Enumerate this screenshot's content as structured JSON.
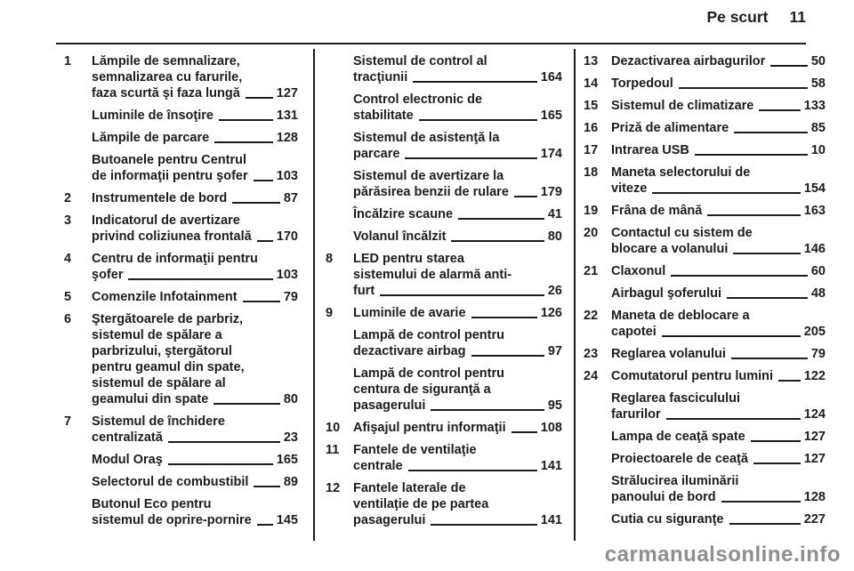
{
  "header": {
    "title": "Pe scurt",
    "page": "11"
  },
  "watermark": "carmanualsonline.info",
  "colors": {
    "text": "#1d1d1b",
    "rule": "#1d1d1b",
    "watermark": "#8e8e8e"
  },
  "columns": [
    {
      "entries": [
        {
          "ref": "1",
          "lines": [
            "Lămpile de semnalizare,",
            "semnalizarea cu farurile,",
            "faza scurtă şi faza lungă"
          ],
          "page": "127"
        },
        {
          "ref": "",
          "lines": [
            "Luminile de însoţire"
          ],
          "page": "131"
        },
        {
          "ref": "",
          "lines": [
            "Lămpile de parcare"
          ],
          "page": "128"
        },
        {
          "ref": "",
          "lines": [
            "Butoanele pentru Centrul",
            "de informaţii pentru şofer"
          ],
          "page": "103"
        },
        {
          "ref": "2",
          "lines": [
            "Instrumentele de bord"
          ],
          "page": "87"
        },
        {
          "ref": "3",
          "lines": [
            "Indicatorul de avertizare",
            "privind coliziunea frontală"
          ],
          "page": "170"
        },
        {
          "ref": "4",
          "lines": [
            "Centru de informaţii pentru",
            "şofer"
          ],
          "page": "103"
        },
        {
          "ref": "5",
          "lines": [
            "Comenzile Infotainment"
          ],
          "page": "79"
        },
        {
          "ref": "6",
          "lines": [
            "Ştergătoarele de parbriz,",
            "sistemul de spălare a",
            "parbrizului, ştergătorul",
            "pentru geamul din spate,",
            "sistemul de spălare al",
            "geamului din spate"
          ],
          "page": "80"
        },
        {
          "ref": "7",
          "lines": [
            "Sistemul de închidere",
            "centralizată"
          ],
          "page": "23"
        },
        {
          "ref": "",
          "lines": [
            "Modul Oraş"
          ],
          "page": "165"
        },
        {
          "ref": "",
          "lines": [
            "Selectorul de combustibil"
          ],
          "page": "89"
        },
        {
          "ref": "",
          "lines": [
            "Butonul Eco pentru",
            "sistemul de oprire-pornire"
          ],
          "page": "145"
        }
      ]
    },
    {
      "entries": [
        {
          "ref": "",
          "lines": [
            "Sistemul de control al",
            "tracţiunii"
          ],
          "page": "164"
        },
        {
          "ref": "",
          "lines": [
            "Control electronic de",
            "stabilitate"
          ],
          "page": "165"
        },
        {
          "ref": "",
          "lines": [
            "Sistemul de asistenţă la",
            "parcare"
          ],
          "page": "174"
        },
        {
          "ref": "",
          "lines": [
            "Sistemul de avertizare la",
            "părăsirea benzii de rulare"
          ],
          "page": "179"
        },
        {
          "ref": "",
          "lines": [
            "Încălzire scaune"
          ],
          "page": "41"
        },
        {
          "ref": "",
          "lines": [
            "Volanul încălzit"
          ],
          "page": "80"
        },
        {
          "ref": "8",
          "lines": [
            "LED pentru starea",
            "sistemului de alarmă anti-",
            "furt"
          ],
          "page": "26"
        },
        {
          "ref": "9",
          "lines": [
            "Luminile de avarie"
          ],
          "page": "126"
        },
        {
          "ref": "",
          "lines": [
            "Lampă de control pentru",
            "dezactivare airbag"
          ],
          "page": "97"
        },
        {
          "ref": "",
          "lines": [
            "Lampă de control pentru",
            "centura de siguranţă a",
            "pasagerului"
          ],
          "page": "95"
        },
        {
          "ref": "10",
          "lines": [
            "Afişajul pentru informaţii"
          ],
          "page": "108"
        },
        {
          "ref": "11",
          "lines": [
            "Fantele de ventilaţie",
            "centrale"
          ],
          "page": "141"
        },
        {
          "ref": "12",
          "lines": [
            "Fantele laterale de",
            "ventilaţie de pe partea",
            "pasagerului"
          ],
          "page": "141"
        }
      ]
    },
    {
      "entries": [
        {
          "ref": "13",
          "lines": [
            "Dezactivarea airbagurilor"
          ],
          "page": "50"
        },
        {
          "ref": "14",
          "lines": [
            "Torpedoul"
          ],
          "page": "58"
        },
        {
          "ref": "15",
          "lines": [
            "Sistemul de climatizare"
          ],
          "page": "133"
        },
        {
          "ref": "16",
          "lines": [
            "Priză de alimentare"
          ],
          "page": "85"
        },
        {
          "ref": "17",
          "lines": [
            "Intrarea USB"
          ],
          "page": "10"
        },
        {
          "ref": "18",
          "lines": [
            "Maneta selectorului de",
            "viteze"
          ],
          "page": "154"
        },
        {
          "ref": "19",
          "lines": [
            "Frâna de mână"
          ],
          "page": "163"
        },
        {
          "ref": "20",
          "lines": [
            "Contactul cu sistem de",
            "blocare a volanului"
          ],
          "page": "146"
        },
        {
          "ref": "21",
          "lines": [
            "Claxonul"
          ],
          "page": "60"
        },
        {
          "ref": "",
          "lines": [
            "Airbagul şoferului"
          ],
          "page": "48"
        },
        {
          "ref": "22",
          "lines": [
            "Maneta de deblocare a",
            "capotei"
          ],
          "page": "205"
        },
        {
          "ref": "23",
          "lines": [
            "Reglarea volanului"
          ],
          "page": "79"
        },
        {
          "ref": "24",
          "lines": [
            "Comutatorul pentru lumini"
          ],
          "page": "122"
        },
        {
          "ref": "",
          "lines": [
            "Reglarea fasciculului",
            "farurilor"
          ],
          "page": "124"
        },
        {
          "ref": "",
          "lines": [
            "Lampa de ceaţă spate"
          ],
          "page": "127"
        },
        {
          "ref": "",
          "lines": [
            "Proiectoarele de ceaţă"
          ],
          "page": "127"
        },
        {
          "ref": "",
          "lines": [
            "Strălucirea iluminării",
            "panoului de bord"
          ],
          "page": "128"
        },
        {
          "ref": "",
          "lines": [
            "Cutia cu siguranţe"
          ],
          "page": "227"
        }
      ]
    }
  ]
}
